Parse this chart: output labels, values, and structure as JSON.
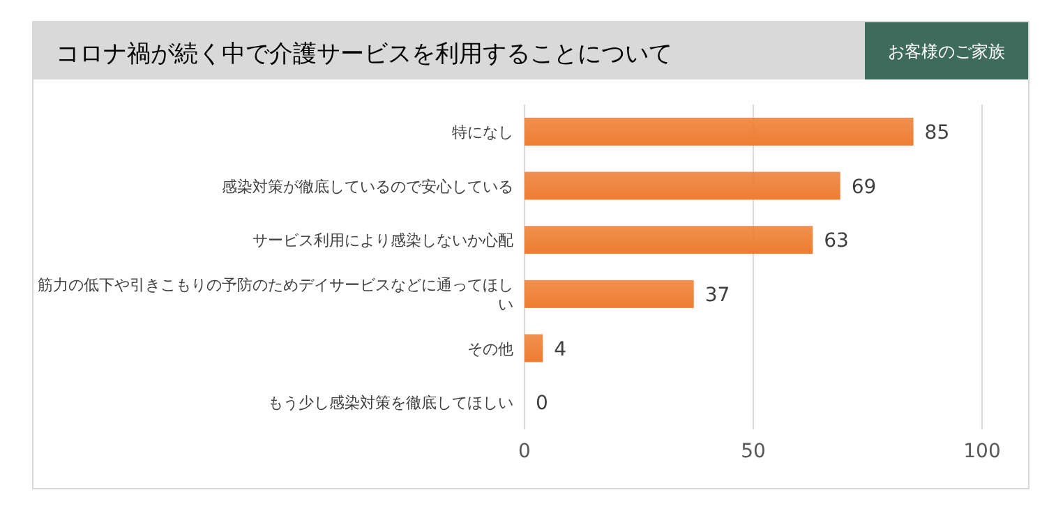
{
  "chart_data": {
    "type": "bar",
    "orientation": "horizontal",
    "title": "コロナ禍が続く中で介護サービスを利用することについて",
    "subtitle": "お客様のご家族",
    "categories": [
      "特になし",
      "感染対策が徹底しているので安心している",
      "サービス利用により感染しないか心配",
      "筋力の低下や引きこもりの予防のためデイサービスなどに通ってほしい",
      "その他",
      "もう少し感染対策を徹底してほしい"
    ],
    "values": [
      85,
      69,
      63,
      37,
      4,
      0
    ],
    "color": "#ed7d31",
    "xlim": [
      0,
      100
    ],
    "xticks": [
      0,
      50,
      100
    ],
    "grid": "x",
    "data_labels": true
  }
}
